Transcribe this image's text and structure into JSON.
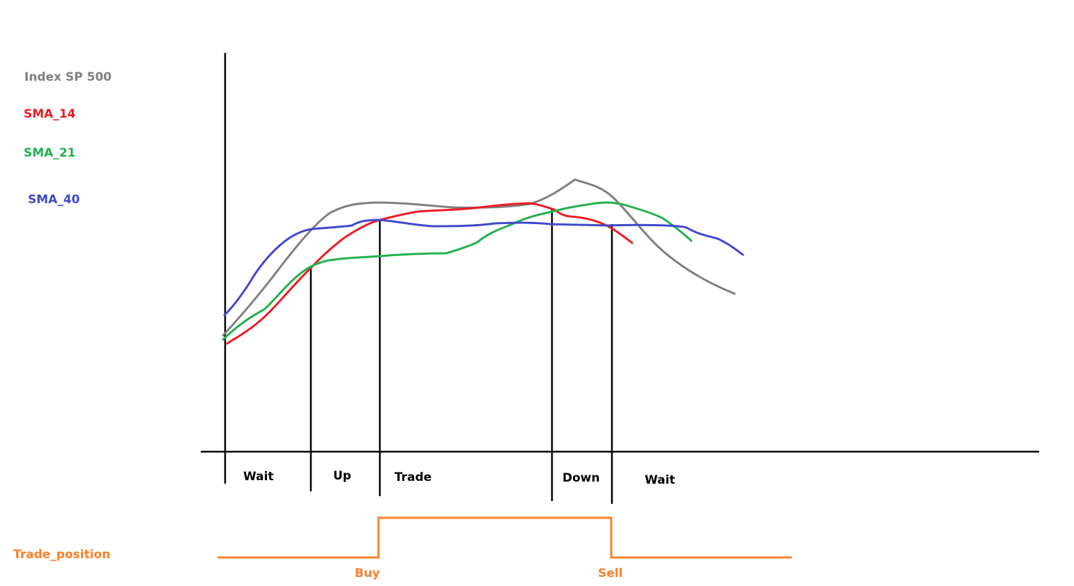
{
  "legend": {
    "index": {
      "label": "Index SP 500",
      "color": "#7f7f7f"
    },
    "sma14": {
      "label": "SMA_14",
      "color": "#ed1c24"
    },
    "sma21": {
      "label": "SMA_21",
      "color": "#22b14c"
    },
    "sma40": {
      "label": "SMA_40",
      "color": "#3f48cc"
    }
  },
  "phases": {
    "wait_start": "Wait",
    "up": "Up",
    "trade": "Trade",
    "down": "Down",
    "wait_end": "Wait"
  },
  "trade_position": {
    "label": "Trade_position",
    "buy": "Buy",
    "sell": "Sell",
    "color": "#ff7f27"
  },
  "axis_color": "#000000"
}
